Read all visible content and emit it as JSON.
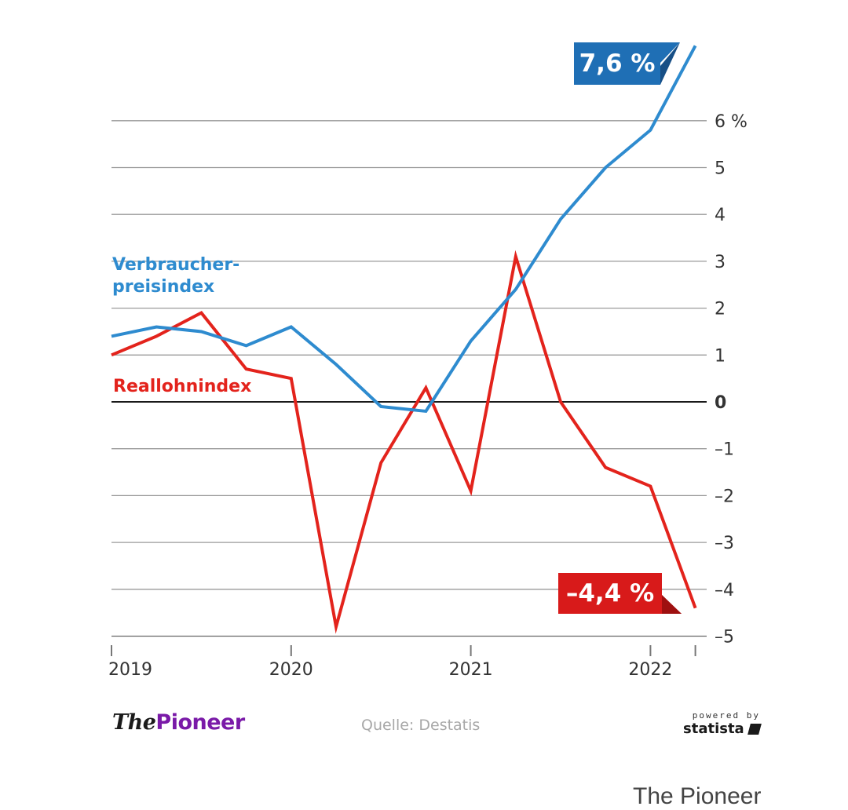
{
  "chart_data": {
    "type": "line",
    "x": [
      "2019-Q1",
      "2019-Q2",
      "2019-Q3",
      "2019-Q4",
      "2020-Q1",
      "2020-Q2",
      "2020-Q3",
      "2020-Q4",
      "2021-Q1",
      "2021-Q2",
      "2021-Q3",
      "2021-Q4",
      "2022-Q1",
      "2022-Q2"
    ],
    "x_tick_labels": [
      "2019",
      "2020",
      "2021",
      "2022"
    ],
    "series": [
      {
        "name": "Verbraucher-preisindex",
        "color": "#2e8bcf",
        "values": [
          1.4,
          1.6,
          1.5,
          1.2,
          1.6,
          0.8,
          -0.1,
          -0.2,
          1.3,
          2.4,
          3.9,
          5.0,
          5.8,
          7.6
        ]
      },
      {
        "name": "Reallohnindex",
        "color": "#e3231c",
        "values": [
          1.0,
          1.4,
          1.9,
          0.7,
          0.5,
          -4.8,
          -1.3,
          0.3,
          -1.9,
          3.1,
          0.0,
          -1.4,
          -1.8,
          -4.4
        ]
      }
    ],
    "ylim": [
      -5,
      7.6
    ],
    "y_ticks": [
      {
        "value": 6,
        "label": "6 %"
      },
      {
        "value": 5,
        "label": "5"
      },
      {
        "value": 4,
        "label": "4"
      },
      {
        "value": 3,
        "label": "3"
      },
      {
        "value": 2,
        "label": "2"
      },
      {
        "value": 1,
        "label": "1"
      },
      {
        "value": 0,
        "label": "0"
      },
      {
        "value": -1,
        "label": "–1"
      },
      {
        "value": -2,
        "label": "–2"
      },
      {
        "value": -3,
        "label": "–3"
      },
      {
        "value": -4,
        "label": "–4"
      },
      {
        "value": -5,
        "label": "–5"
      }
    ],
    "grid": true,
    "y_axis_side": "right",
    "annotations": [
      {
        "text": "7,6 %",
        "series": 0,
        "color": "#1f6fb5"
      },
      {
        "text": "–4,4 %",
        "series": 1,
        "color": "#d81a1a"
      }
    ]
  },
  "labels": {
    "vpi": "Verbraucher-preisindex",
    "rli": "Reallohnindex"
  },
  "footer": {
    "brand_the": "The",
    "brand_pioneer": "Pioneer",
    "source": "Quelle: Destatis",
    "powered_by": "powered by",
    "statista": "statista"
  },
  "caption": "The Pioneer"
}
